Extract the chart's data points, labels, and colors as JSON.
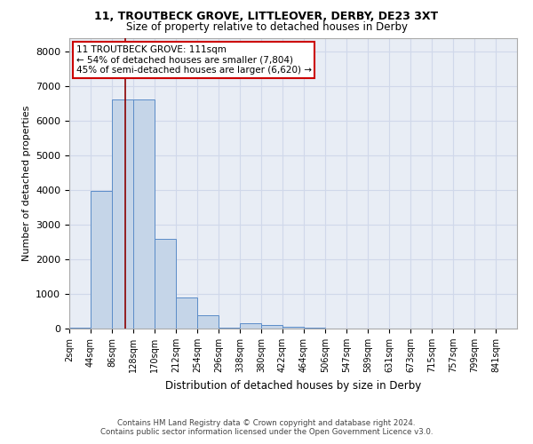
{
  "title1": "11, TROUTBECK GROVE, LITTLEOVER, DERBY, DE23 3XT",
  "title2": "Size of property relative to detached houses in Derby",
  "xlabel": "Distribution of detached houses by size in Derby",
  "ylabel": "Number of detached properties",
  "annotation_line1": "11 TROUTBECK GROVE: 111sqm",
  "annotation_line2": "← 54% of detached houses are smaller (7,804)",
  "annotation_line3": "45% of semi-detached houses are larger (6,620) →",
  "footer1": "Contains HM Land Registry data © Crown copyright and database right 2024.",
  "footer2": "Contains public sector information licensed under the Open Government Licence v3.0.",
  "bar_color": "#c5d5e8",
  "bar_edge_color": "#5b8cc8",
  "grid_color": "#d0d8ea",
  "annotation_line_color": "#8b0000",
  "annotation_box_color": "#cc0000",
  "bin_labels": [
    "2sqm",
    "44sqm",
    "86sqm",
    "128sqm",
    "170sqm",
    "212sqm",
    "254sqm",
    "296sqm",
    "338sqm",
    "380sqm",
    "422sqm",
    "464sqm",
    "506sqm",
    "547sqm",
    "589sqm",
    "631sqm",
    "673sqm",
    "715sqm",
    "757sqm",
    "799sqm",
    "841sqm"
  ],
  "bar_heights": [
    30,
    3980,
    6620,
    6620,
    2580,
    900,
    390,
    30,
    150,
    100,
    60,
    30,
    0,
    0,
    0,
    0,
    0,
    0,
    0,
    0,
    0
  ],
  "red_line_x": 2.62,
  "ylim": [
    0,
    8400
  ],
  "yticks": [
    0,
    1000,
    2000,
    3000,
    4000,
    5000,
    6000,
    7000,
    8000
  ],
  "background_color": "#ffffff",
  "plot_background": "#e8edf5"
}
